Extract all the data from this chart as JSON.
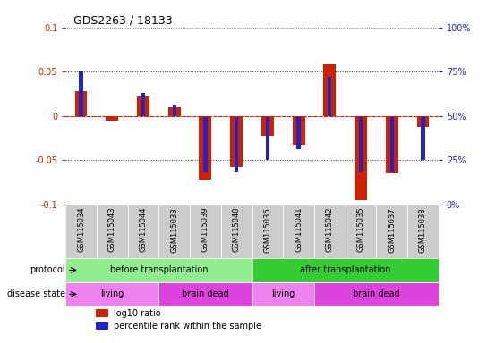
{
  "title": "GDS2263 / 18133",
  "samples": [
    "GSM115034",
    "GSM115043",
    "GSM115044",
    "GSM115033",
    "GSM115039",
    "GSM115040",
    "GSM115036",
    "GSM115041",
    "GSM115042",
    "GSM115035",
    "GSM115037",
    "GSM115038"
  ],
  "log10_ratio": [
    0.028,
    -0.005,
    0.022,
    0.01,
    -0.072,
    -0.058,
    -0.022,
    -0.033,
    0.058,
    -0.095,
    -0.065,
    -0.012
  ],
  "percentile_rank_pct": [
    75,
    50,
    63,
    56,
    18,
    18,
    25,
    31,
    72,
    18,
    18,
    25
  ],
  "ylim": [
    -0.1,
    0.1
  ],
  "yticks_left": [
    -0.1,
    -0.05,
    0.0,
    0.05,
    0.1
  ],
  "ytick_labels_left": [
    "-0.1",
    "-0.05",
    "0",
    "0.05",
    "0.1"
  ],
  "ytick_labels_right": [
    "0%",
    "25%",
    "50%",
    "75%",
    "100%"
  ],
  "protocol_groups": [
    {
      "label": "before transplantation",
      "start": 0,
      "end": 6,
      "color": "#90EE90"
    },
    {
      "label": "after transplantation",
      "start": 6,
      "end": 12,
      "color": "#33CC33"
    }
  ],
  "disease_groups": [
    {
      "label": "living",
      "start": 0,
      "end": 3,
      "color": "#EE82EE"
    },
    {
      "label": "brain dead",
      "start": 3,
      "end": 6,
      "color": "#DD44DD"
    },
    {
      "label": "living",
      "start": 6,
      "end": 8,
      "color": "#EE82EE"
    },
    {
      "label": "brain dead",
      "start": 8,
      "end": 12,
      "color": "#DD44DD"
    }
  ],
  "bar_color_red": "#CC2200",
  "bar_color_blue": "#2222CC",
  "dotted_color": "#333333",
  "zero_line_color": "#CC2200",
  "red_bar_width": 0.4,
  "blue_bar_width": 0.12,
  "legend_items": [
    {
      "label": "log10 ratio",
      "color": "#CC2200"
    },
    {
      "label": "percentile rank within the sample",
      "color": "#2222CC"
    }
  ],
  "tick_label_bg": "#CCCCCC",
  "label_font_size": 7,
  "sample_font_size": 6
}
